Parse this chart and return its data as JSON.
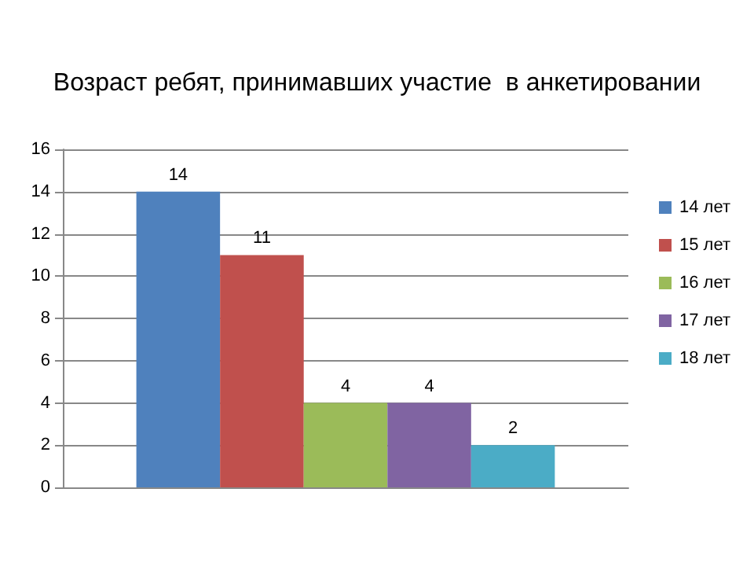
{
  "chart_data": {
    "type": "bar",
    "title": "Возраст ребят, принимавших участие  в анкетировании",
    "categories": [
      null
    ],
    "series": [
      {
        "name": "14 лет",
        "color": "#4f81bd",
        "values": [
          14
        ]
      },
      {
        "name": "15 лет",
        "color": "#c0504d",
        "values": [
          11
        ]
      },
      {
        "name": "16 лет",
        "color": "#9bbb59",
        "values": [
          4
        ]
      },
      {
        "name": "17 лет",
        "color": "#8064a2",
        "values": [
          4
        ]
      },
      {
        "name": "18 лет",
        "color": "#4bacc6",
        "values": [
          2
        ]
      }
    ],
    "ylim": [
      0,
      16
    ],
    "yticks": [
      0,
      2,
      4,
      6,
      8,
      10,
      12,
      14,
      16
    ],
    "grid": "y",
    "legend": "right",
    "data_labels": true
  }
}
